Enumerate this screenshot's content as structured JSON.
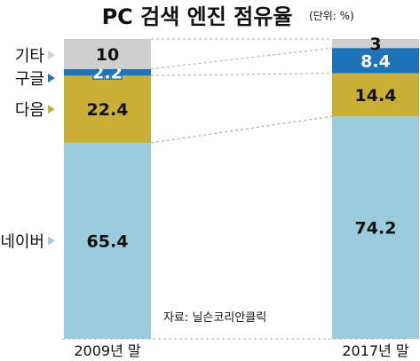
{
  "chart_data": {
    "type": "bar",
    "stacked": true,
    "title": "PC 검색 엔진 점유율",
    "unit_note": "(단위: %)",
    "source": "자료: 닐슨코리안클릭",
    "categories": [
      "2009년 말",
      "2017년 말"
    ],
    "series": [
      {
        "name": "네이버",
        "values": [
          65.4,
          74.2
        ],
        "labels": [
          "65.4",
          "74.2"
        ],
        "color": "#9CCBDB",
        "label_color": "#111111"
      },
      {
        "name": "다음",
        "values": [
          22.4,
          14.4
        ],
        "labels": [
          "22.4",
          "14.4"
        ],
        "color": "#C9AF38",
        "label_color": "#111111"
      },
      {
        "name": "구글",
        "values": [
          2.2,
          8.4
        ],
        "labels": [
          "2.2",
          "8.4"
        ],
        "color": "#1E73B8",
        "label_color": "#ffffff"
      },
      {
        "name": "기타",
        "values": [
          10,
          3
        ],
        "labels": [
          "10",
          "3"
        ],
        "color": "#CFCFCF",
        "label_color": "#111111"
      }
    ],
    "ylim": [
      0,
      100
    ],
    "grid": false,
    "connectors": true,
    "legend_position": "left"
  }
}
